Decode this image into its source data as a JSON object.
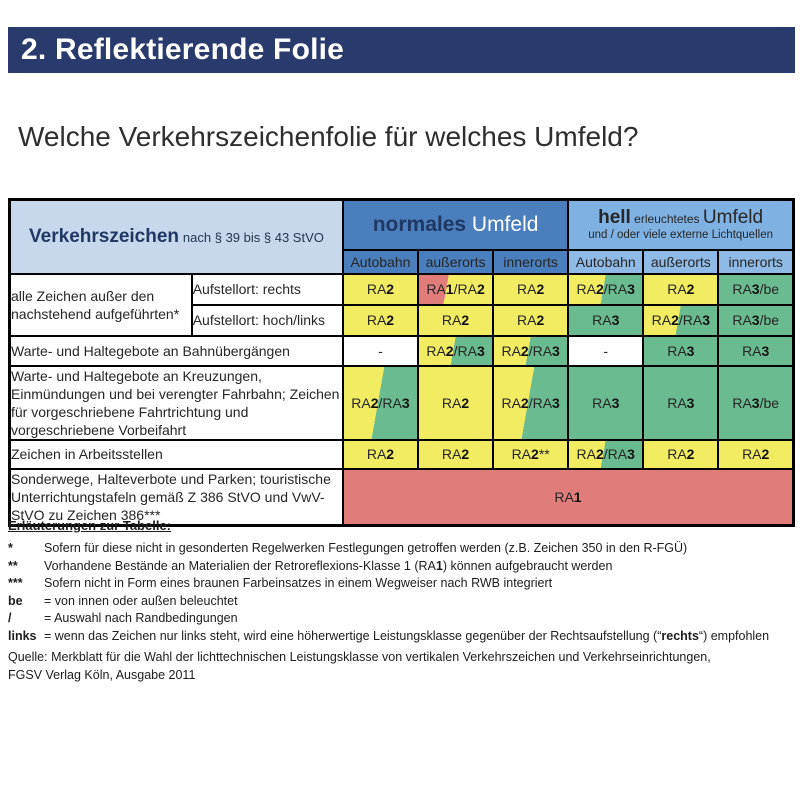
{
  "palette": {
    "yellow": "#f2ec62",
    "green": "#6abc90",
    "red": "#e07d7b",
    "white": "#ffffff"
  },
  "title_bar": {
    "text": "2. Reflektierende Folie"
  },
  "subtitle": "Welche Verkehrszeichenfolie für welches Umfeld?",
  "table": {
    "corner": {
      "title": "Verkehrszeichen",
      "subtitle": "nach § 39 bis § 43 StVO"
    },
    "group_normal": {
      "bold": "normales",
      "rest": " Umfeld"
    },
    "group_hell": {
      "bold": "hell",
      "mid": " erleuchtetes ",
      "big": "Umfeld",
      "line2": "und / oder viele externe Lichtquellen"
    },
    "col_headers": [
      "Autobahn",
      "außerorts",
      "innerorts",
      "Autobahn",
      "außerorts",
      "innerorts"
    ],
    "rows": {
      "alle_zeichen": {
        "label": "alle Zeichen außer den nachstehend aufgeführten*",
        "sub_rechts": "Aufstellort: rechts",
        "sub_hochlinks": "Aufstellort: hoch/links",
        "values_rechts": [
          "RA2",
          "RA1/RA2",
          "RA2",
          "RA2/RA3",
          "RA2",
          "RA3/be"
        ],
        "values_hochlinks": [
          "RA2",
          "RA2",
          "RA2",
          "RA3",
          "RA2/RA3",
          "RA3/be"
        ]
      },
      "bahnuebergaenge": {
        "label": "Warte- und Haltegebote an Bahnübergängen",
        "values": [
          "-",
          "RA2/RA3",
          "RA2/RA3",
          "-",
          "RA3",
          "RA3"
        ]
      },
      "kreuzungen": {
        "label": "Warte- und Haltegebote an Kreuzungen, Einmündungen und bei verengter Fahrbahn; Zeichen für vorgeschriebene Fahrtrichtung und vorgeschriebene Vorbeifahrt",
        "values": [
          "RA2/RA3",
          "RA2",
          "RA2/RA3",
          "RA3",
          "RA3",
          "RA3/be"
        ]
      },
      "arbeitsstellen": {
        "label": "Zeichen in Arbeitsstellen",
        "values": [
          "RA2",
          "RA2",
          "RA2**",
          "RA2/RA3",
          "RA2",
          "RA2"
        ]
      },
      "sonderwege": {
        "label": "Sonderwege, Halteverbote und Parken; touristische Unterrichtungstafeln gemäß Z 386 StVO und VwV-StVO zu Zeichen 386***",
        "value_span": "RA1"
      }
    }
  },
  "notes": {
    "heading": "Erläuterungen zur Tabelle:",
    "items": [
      {
        "marker": "*",
        "text": "Sofern für diese nicht in gesonderten Regelwerken Festlegungen getroffen werden (z.B. Zeichen 350 in den R-FGÜ)"
      },
      {
        "marker": "**",
        "text": "Vorhandene Bestände an Materialien der Retroreflexions-Klasse 1 (RA**1**) können aufgebraucht werden"
      },
      {
        "marker": "***",
        "text": "Sofern nicht in Form eines braunen Farbeinsatzes in einem Wegweiser nach RWB integriert"
      },
      {
        "marker": "be",
        "text": "= von innen oder außen beleuchtet"
      },
      {
        "marker": "/",
        "text": "= Auswahl nach Randbedingungen"
      },
      {
        "marker": "links",
        "text": "= wenn das Zeichen nur links steht, wird eine höherwertige Leistungsklasse gegenüber der Rechtsaufstellung (“**rechts**“) empfohlen"
      }
    ]
  },
  "source": {
    "line1": "Quelle: Merkblatt für die Wahl der lichttechnischen Leistungsklasse von vertikalen Verkehrszeichen und Verkehrseinrichtungen,",
    "line2": "FGSV Verlag Köln, Ausgabe 2011"
  }
}
